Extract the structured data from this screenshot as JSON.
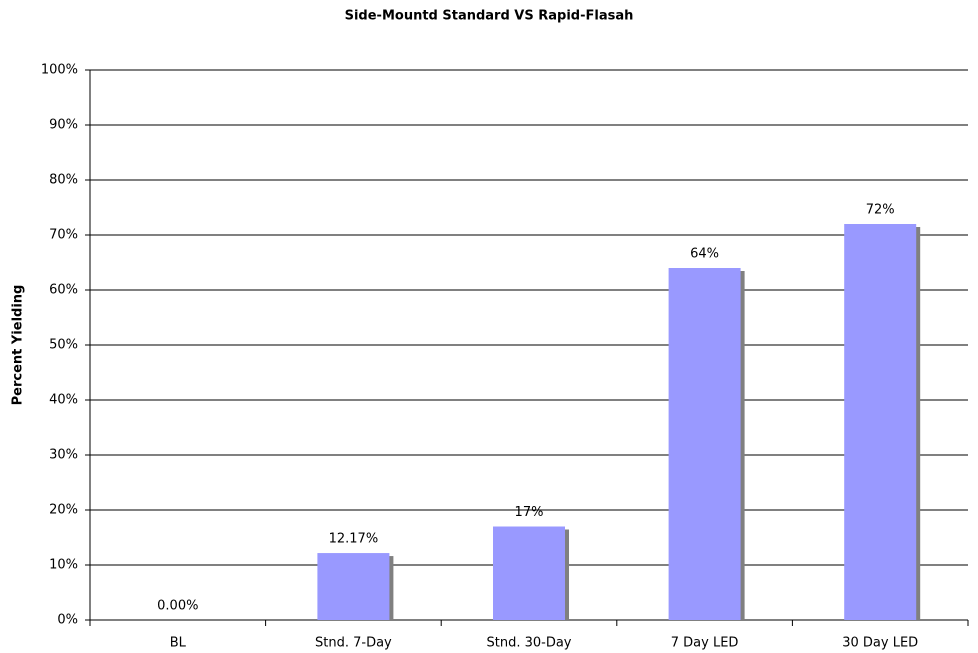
{
  "chart_data": {
    "type": "bar",
    "title": "Side-Mountd Standard VS Rapid-Flasah",
    "y_label": "Percent Yielding",
    "categories": [
      "BL",
      "Stnd. 7-Day",
      "Stnd. 30-Day",
      "7 Day LED",
      "30 Day LED"
    ],
    "values": [
      0,
      12.17,
      17,
      64,
      72
    ],
    "value_labels": [
      "0.00%",
      "12.17%",
      "17%",
      "64%",
      "72%"
    ],
    "color": "#9999ff",
    "ylim": [
      0,
      100
    ],
    "yticks": [
      {
        "value": 0,
        "label": "0%"
      },
      {
        "value": 10,
        "label": "10%"
      },
      {
        "value": 20,
        "label": "20%"
      },
      {
        "value": 30,
        "label": "30%"
      },
      {
        "value": 40,
        "label": "40%"
      },
      {
        "value": 50,
        "label": "50%"
      },
      {
        "value": 60,
        "label": "60%"
      },
      {
        "value": 70,
        "label": "70%"
      },
      {
        "value": 80,
        "label": "80%"
      },
      {
        "value": 90,
        "label": "90%"
      },
      {
        "value": 100,
        "label": "100%"
      }
    ],
    "grid": true
  }
}
